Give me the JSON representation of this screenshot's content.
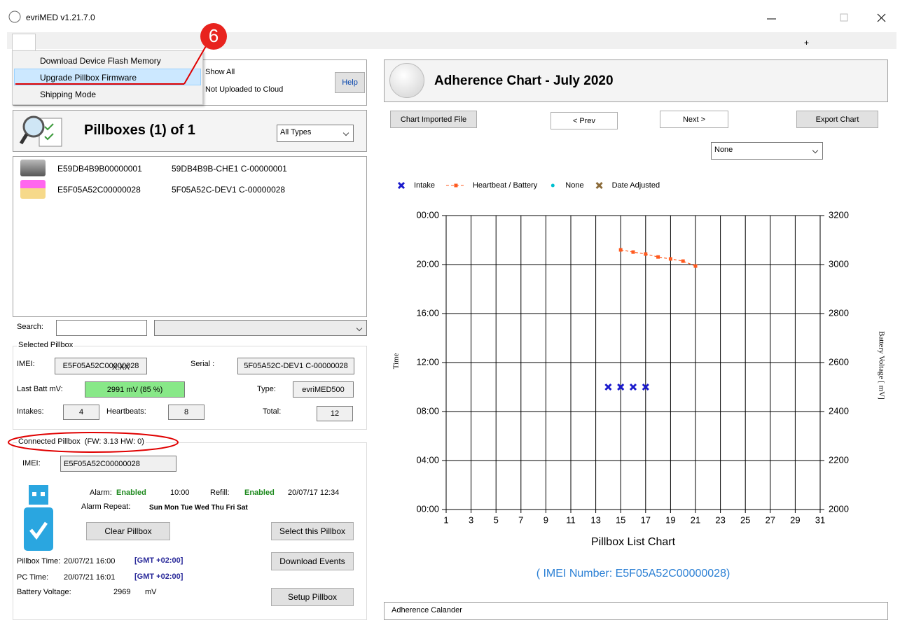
{
  "window": {
    "title": "evriMED v1.21.7.0"
  },
  "menu": {
    "step": "6",
    "items": [
      "Download Device Flash Memory",
      "Upgrade Pillbox Firmware",
      "Shipping Mode"
    ]
  },
  "filter": {
    "options": [
      "Show All",
      "Not Uploaded to Cloud"
    ],
    "help": "Help"
  },
  "pillboxes": {
    "title": "Pillboxes (1) of 1",
    "type_filter": "All Types",
    "rows": [
      [
        "E59DB4B9B00000001",
        "59DB4B9B-CHE1 C-00000001"
      ],
      [
        "E5F05A52C00000028",
        "5F05A52C-DEV1 C-00000028"
      ]
    ]
  },
  "search": {
    "label": "Search:"
  },
  "selected": {
    "title": "Selected Pillbox",
    "imei_label": "IMEI:",
    "imei": "E5F05A52C00000028",
    "imei_overlay": "X.XX",
    "serial_label": "Serial :",
    "serial": "5F05A52C-DEV1 C-00000028",
    "batt_label": "Last Batt mV:",
    "batt": "2991 mV  (85 %)",
    "type_label": "Type:",
    "type": "evriMED500",
    "intakes_label": "Intakes:",
    "intakes": 4,
    "heartbeats_label": "Heartbeats:",
    "heartbeats": 8,
    "total_label": "Total:",
    "total": 12
  },
  "connected": {
    "title": "Connected Pillbox",
    "fw": "(FW: 3.13  HW: 0)",
    "imei_label": "IMEI:",
    "imei": "E5F05A52C00000028",
    "alarm_label": "Alarm:",
    "alarm": "Enabled",
    "alarm_time": "10:00",
    "refill_label": "Refill:",
    "refill": "Enabled",
    "refill_time": "20/07/17 12:34",
    "repeat_label": "Alarm Repeat:",
    "repeat": "Sun Mon Tue Wed Thu Fri Sat",
    "clear": "Clear Pillbox",
    "select": "Select this Pillbox",
    "download": "Download Events",
    "setup": "Setup Pillbox",
    "pillbox_time_label": "Pillbox Time:",
    "pillbox_time": "20/07/21 16:00",
    "pillbox_tz": "[GMT +02:00]",
    "pc_time_label": "PC Time:",
    "pc_time": "20/07/21 16:01",
    "pc_tz": "[GMT +02:00]",
    "battery_label": "Battery Voltage:",
    "battery": 2969,
    "battery_unit": "mV"
  },
  "tabs": {
    "add": "+"
  },
  "chart_header": {
    "title": "Adherence Chart - July 2020"
  },
  "chart_buttons": {
    "imported": "Chart Imported File",
    "prev": "< Prev",
    "next": "Next >",
    "export": "Export Chart"
  },
  "series_select": "None",
  "status": "Adherence Calander",
  "chart_data": {
    "type": "scatter",
    "xlabel": "Pillbox List Chart",
    "ylabel": "Time",
    "y2label": "Battery Voltage  [ mV]",
    "annotation": "( IMEI Number: E5F05A52C00000028)",
    "xlim": [
      1,
      31
    ],
    "xticks": [
      1,
      3,
      5,
      7,
      9,
      11,
      13,
      15,
      17,
      19,
      21,
      23,
      25,
      27,
      29,
      31
    ],
    "ylim": [
      0,
      24
    ],
    "yticks": [
      {
        "value": 0,
        "label": "00:00"
      },
      {
        "value": 4,
        "label": "04:00"
      },
      {
        "value": 8,
        "label": "08:00"
      },
      {
        "value": 12,
        "label": "12:00"
      },
      {
        "value": 16,
        "label": "16:00"
      },
      {
        "value": 20,
        "label": "20:00"
      },
      {
        "value": 24,
        "label": "00:00"
      }
    ],
    "y2lim": [
      2000,
      3200
    ],
    "y2ticks": [
      2000,
      2200,
      2400,
      2600,
      2800,
      3000,
      3200
    ],
    "grid": true,
    "series": [
      {
        "name": "Intake",
        "color": "#1a1acc",
        "marker": "x",
        "x": [
          14,
          15,
          16,
          17
        ],
        "values": [
          10,
          10,
          10,
          10
        ]
      },
      {
        "name": "Heartbeat / Battery",
        "color": "#ff5a1f",
        "marker": "square",
        "line": "dashed",
        "axis": "y2",
        "x": [
          15,
          16,
          17,
          18,
          19,
          20,
          21
        ],
        "values": [
          3060,
          3051,
          3043,
          3031,
          3023,
          3014,
          2994
        ]
      },
      {
        "name": "None",
        "color": "#00c0d0",
        "marker": "dot",
        "x": [],
        "values": []
      },
      {
        "name": "Date Adjusted",
        "color": "#8b6b3a",
        "marker": "x",
        "x": [],
        "values": []
      }
    ]
  }
}
